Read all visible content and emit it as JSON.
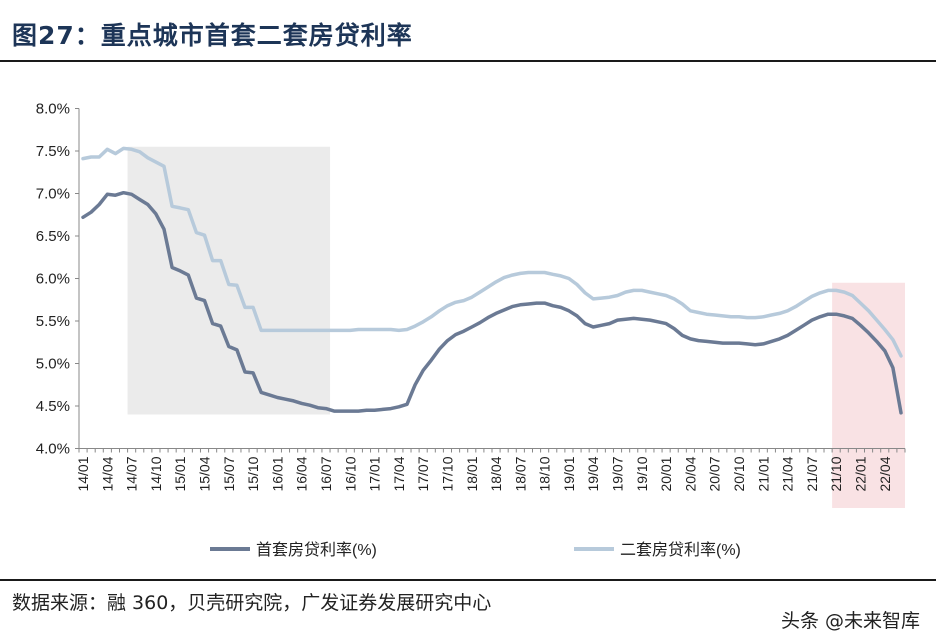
{
  "header": {
    "title": "图27：重点城市首套二套房贷利率"
  },
  "footer": {
    "source": "数据来源：融 360，贝壳研究院，广发证券发展研究中心",
    "watermark": "头条 @未来智库"
  },
  "colors": {
    "first_home": "#6b7a94",
    "second_home": "#b7cadb",
    "grey_shade": "#ebebeb",
    "red_shade": "#f9e2e4",
    "axis": "#888888"
  },
  "chart_data": {
    "type": "line",
    "title": "",
    "xlabel": "",
    "ylabel": "",
    "ylim": [
      4.0,
      8.0
    ],
    "y_ticks": [
      "4.0%",
      "4.5%",
      "5.0%",
      "5.5%",
      "6.0%",
      "6.5%",
      "7.0%",
      "7.5%",
      "8.0%"
    ],
    "x_tick_labels": [
      "14/01",
      "14/04",
      "14/07",
      "14/10",
      "15/01",
      "15/04",
      "15/07",
      "15/10",
      "16/01",
      "16/04",
      "16/07",
      "16/10",
      "17/01",
      "17/04",
      "17/07",
      "17/10",
      "18/01",
      "18/04",
      "18/07",
      "18/10",
      "19/01",
      "19/04",
      "19/07",
      "19/10",
      "20/01",
      "20/04",
      "20/07",
      "20/10",
      "21/01",
      "21/04",
      "21/07",
      "21/10",
      "22/01",
      "22/04"
    ],
    "shaded_regions": [
      {
        "from": "14/07",
        "to": "16/07",
        "y_from": 4.4,
        "y_to": 7.55,
        "color": "grey"
      },
      {
        "from": "21/10",
        "to": "22/06",
        "y_from": 3.3,
        "y_to": 5.95,
        "color": "red"
      }
    ],
    "legend_position": "bottom",
    "series": [
      {
        "name": "首套房贷利率(%)",
        "points": [
          [
            "14/01",
            6.72
          ],
          [
            "14/02",
            6.78
          ],
          [
            "14/03",
            6.87
          ],
          [
            "14/04",
            6.99
          ],
          [
            "14/05",
            6.98
          ],
          [
            "14/06",
            7.01
          ],
          [
            "14/07",
            6.99
          ],
          [
            "14/08",
            6.93
          ],
          [
            "14/09",
            6.87
          ],
          [
            "14/10",
            6.76
          ],
          [
            "14/11",
            6.58
          ],
          [
            "14/12",
            6.13
          ],
          [
            "15/01",
            6.09
          ],
          [
            "15/02",
            6.04
          ],
          [
            "15/03",
            5.77
          ],
          [
            "15/04",
            5.74
          ],
          [
            "15/05",
            5.47
          ],
          [
            "15/06",
            5.44
          ],
          [
            "15/07",
            5.2
          ],
          [
            "15/08",
            5.16
          ],
          [
            "15/09",
            4.9
          ],
          [
            "15/10",
            4.89
          ],
          [
            "15/11",
            4.66
          ],
          [
            "15/12",
            4.63
          ],
          [
            "16/01",
            4.6
          ],
          [
            "16/02",
            4.58
          ],
          [
            "16/03",
            4.56
          ],
          [
            "16/04",
            4.53
          ],
          [
            "16/05",
            4.51
          ],
          [
            "16/06",
            4.48
          ],
          [
            "16/07",
            4.47
          ],
          [
            "16/08",
            4.44
          ],
          [
            "16/09",
            4.44
          ],
          [
            "16/10",
            4.44
          ],
          [
            "16/11",
            4.44
          ],
          [
            "16/12",
            4.45
          ],
          [
            "17/01",
            4.45
          ],
          [
            "17/02",
            4.46
          ],
          [
            "17/03",
            4.47
          ],
          [
            "17/04",
            4.49
          ],
          [
            "17/05",
            4.52
          ],
          [
            "17/06",
            4.75
          ],
          [
            "17/07",
            4.92
          ],
          [
            "17/08",
            5.04
          ],
          [
            "17/09",
            5.17
          ],
          [
            "17/10",
            5.27
          ],
          [
            "17/11",
            5.34
          ],
          [
            "17/12",
            5.38
          ],
          [
            "18/01",
            5.43
          ],
          [
            "18/02",
            5.48
          ],
          [
            "18/03",
            5.54
          ],
          [
            "18/04",
            5.59
          ],
          [
            "18/05",
            5.63
          ],
          [
            "18/06",
            5.67
          ],
          [
            "18/07",
            5.69
          ],
          [
            "18/08",
            5.7
          ],
          [
            "18/09",
            5.71
          ],
          [
            "18/10",
            5.71
          ],
          [
            "18/11",
            5.68
          ],
          [
            "18/12",
            5.66
          ],
          [
            "19/01",
            5.62
          ],
          [
            "19/02",
            5.56
          ],
          [
            "19/03",
            5.47
          ],
          [
            "19/04",
            5.43
          ],
          [
            "19/05",
            5.45
          ],
          [
            "19/06",
            5.47
          ],
          [
            "19/07",
            5.51
          ],
          [
            "19/08",
            5.52
          ],
          [
            "19/09",
            5.53
          ],
          [
            "19/10",
            5.52
          ],
          [
            "19/11",
            5.51
          ],
          [
            "19/12",
            5.49
          ],
          [
            "20/01",
            5.47
          ],
          [
            "20/02",
            5.41
          ],
          [
            "20/03",
            5.33
          ],
          [
            "20/04",
            5.29
          ],
          [
            "20/05",
            5.27
          ],
          [
            "20/06",
            5.26
          ],
          [
            "20/07",
            5.25
          ],
          [
            "20/08",
            5.24
          ],
          [
            "20/09",
            5.24
          ],
          [
            "20/10",
            5.24
          ],
          [
            "20/11",
            5.23
          ],
          [
            "20/12",
            5.22
          ],
          [
            "21/01",
            5.23
          ],
          [
            "21/02",
            5.26
          ],
          [
            "21/03",
            5.29
          ],
          [
            "21/04",
            5.33
          ],
          [
            "21/05",
            5.39
          ],
          [
            "21/06",
            5.45
          ],
          [
            "21/07",
            5.51
          ],
          [
            "21/08",
            5.55
          ],
          [
            "21/09",
            5.58
          ],
          [
            "21/10",
            5.58
          ],
          [
            "21/11",
            5.56
          ],
          [
            "21/12",
            5.53
          ],
          [
            "22/01",
            5.45
          ],
          [
            "22/02",
            5.36
          ],
          [
            "22/03",
            5.26
          ],
          [
            "22/04",
            5.15
          ],
          [
            "22/05",
            4.95
          ],
          [
            "22/06",
            4.42
          ]
        ]
      },
      {
        "name": "二套房贷利率(%)",
        "points": [
          [
            "14/01",
            7.41
          ],
          [
            "14/02",
            7.43
          ],
          [
            "14/03",
            7.43
          ],
          [
            "14/04",
            7.52
          ],
          [
            "14/05",
            7.47
          ],
          [
            "14/06",
            7.53
          ],
          [
            "14/07",
            7.52
          ],
          [
            "14/08",
            7.49
          ],
          [
            "14/09",
            7.42
          ],
          [
            "14/10",
            7.37
          ],
          [
            "14/11",
            7.32
          ],
          [
            "14/12",
            6.85
          ],
          [
            "15/01",
            6.83
          ],
          [
            "15/02",
            6.81
          ],
          [
            "15/03",
            6.54
          ],
          [
            "15/04",
            6.51
          ],
          [
            "15/05",
            6.21
          ],
          [
            "15/06",
            6.21
          ],
          [
            "15/07",
            5.93
          ],
          [
            "15/08",
            5.92
          ],
          [
            "15/09",
            5.66
          ],
          [
            "15/10",
            5.66
          ],
          [
            "15/11",
            5.39
          ],
          [
            "15/12",
            5.39
          ],
          [
            "16/01",
            5.39
          ],
          [
            "16/02",
            5.39
          ],
          [
            "16/03",
            5.39
          ],
          [
            "16/04",
            5.39
          ],
          [
            "16/05",
            5.39
          ],
          [
            "16/06",
            5.39
          ],
          [
            "16/07",
            5.39
          ],
          [
            "16/08",
            5.39
          ],
          [
            "16/09",
            5.39
          ],
          [
            "16/10",
            5.39
          ],
          [
            "16/11",
            5.4
          ],
          [
            "16/12",
            5.4
          ],
          [
            "17/01",
            5.4
          ],
          [
            "17/02",
            5.4
          ],
          [
            "17/03",
            5.4
          ],
          [
            "17/04",
            5.39
          ],
          [
            "17/05",
            5.4
          ],
          [
            "17/06",
            5.44
          ],
          [
            "17/07",
            5.49
          ],
          [
            "17/08",
            5.55
          ],
          [
            "17/09",
            5.62
          ],
          [
            "17/10",
            5.68
          ],
          [
            "17/11",
            5.72
          ],
          [
            "17/12",
            5.74
          ],
          [
            "18/01",
            5.78
          ],
          [
            "18/02",
            5.84
          ],
          [
            "18/03",
            5.9
          ],
          [
            "18/04",
            5.96
          ],
          [
            "18/05",
            6.01
          ],
          [
            "18/06",
            6.04
          ],
          [
            "18/07",
            6.06
          ],
          [
            "18/08",
            6.07
          ],
          [
            "18/09",
            6.07
          ],
          [
            "18/10",
            6.07
          ],
          [
            "18/11",
            6.05
          ],
          [
            "18/12",
            6.03
          ],
          [
            "19/01",
            6.0
          ],
          [
            "19/02",
            5.93
          ],
          [
            "19/03",
            5.83
          ],
          [
            "19/04",
            5.76
          ],
          [
            "19/05",
            5.77
          ],
          [
            "19/06",
            5.78
          ],
          [
            "19/07",
            5.8
          ],
          [
            "19/08",
            5.84
          ],
          [
            "19/09",
            5.86
          ],
          [
            "19/10",
            5.86
          ],
          [
            "19/11",
            5.84
          ],
          [
            "19/12",
            5.82
          ],
          [
            "20/01",
            5.8
          ],
          [
            "20/02",
            5.76
          ],
          [
            "20/03",
            5.7
          ],
          [
            "20/04",
            5.62
          ],
          [
            "20/05",
            5.6
          ],
          [
            "20/06",
            5.58
          ],
          [
            "20/07",
            5.57
          ],
          [
            "20/08",
            5.56
          ],
          [
            "20/09",
            5.55
          ],
          [
            "20/10",
            5.55
          ],
          [
            "20/11",
            5.54
          ],
          [
            "20/12",
            5.54
          ],
          [
            "21/01",
            5.55
          ],
          [
            "21/02",
            5.57
          ],
          [
            "21/03",
            5.59
          ],
          [
            "21/04",
            5.62
          ],
          [
            "21/05",
            5.67
          ],
          [
            "21/06",
            5.73
          ],
          [
            "21/07",
            5.79
          ],
          [
            "21/08",
            5.83
          ],
          [
            "21/09",
            5.86
          ],
          [
            "21/10",
            5.86
          ],
          [
            "21/11",
            5.84
          ],
          [
            "21/12",
            5.8
          ],
          [
            "22/01",
            5.71
          ],
          [
            "22/02",
            5.62
          ],
          [
            "22/03",
            5.51
          ],
          [
            "22/04",
            5.4
          ],
          [
            "22/05",
            5.28
          ],
          [
            "22/06",
            5.09
          ]
        ]
      }
    ]
  }
}
